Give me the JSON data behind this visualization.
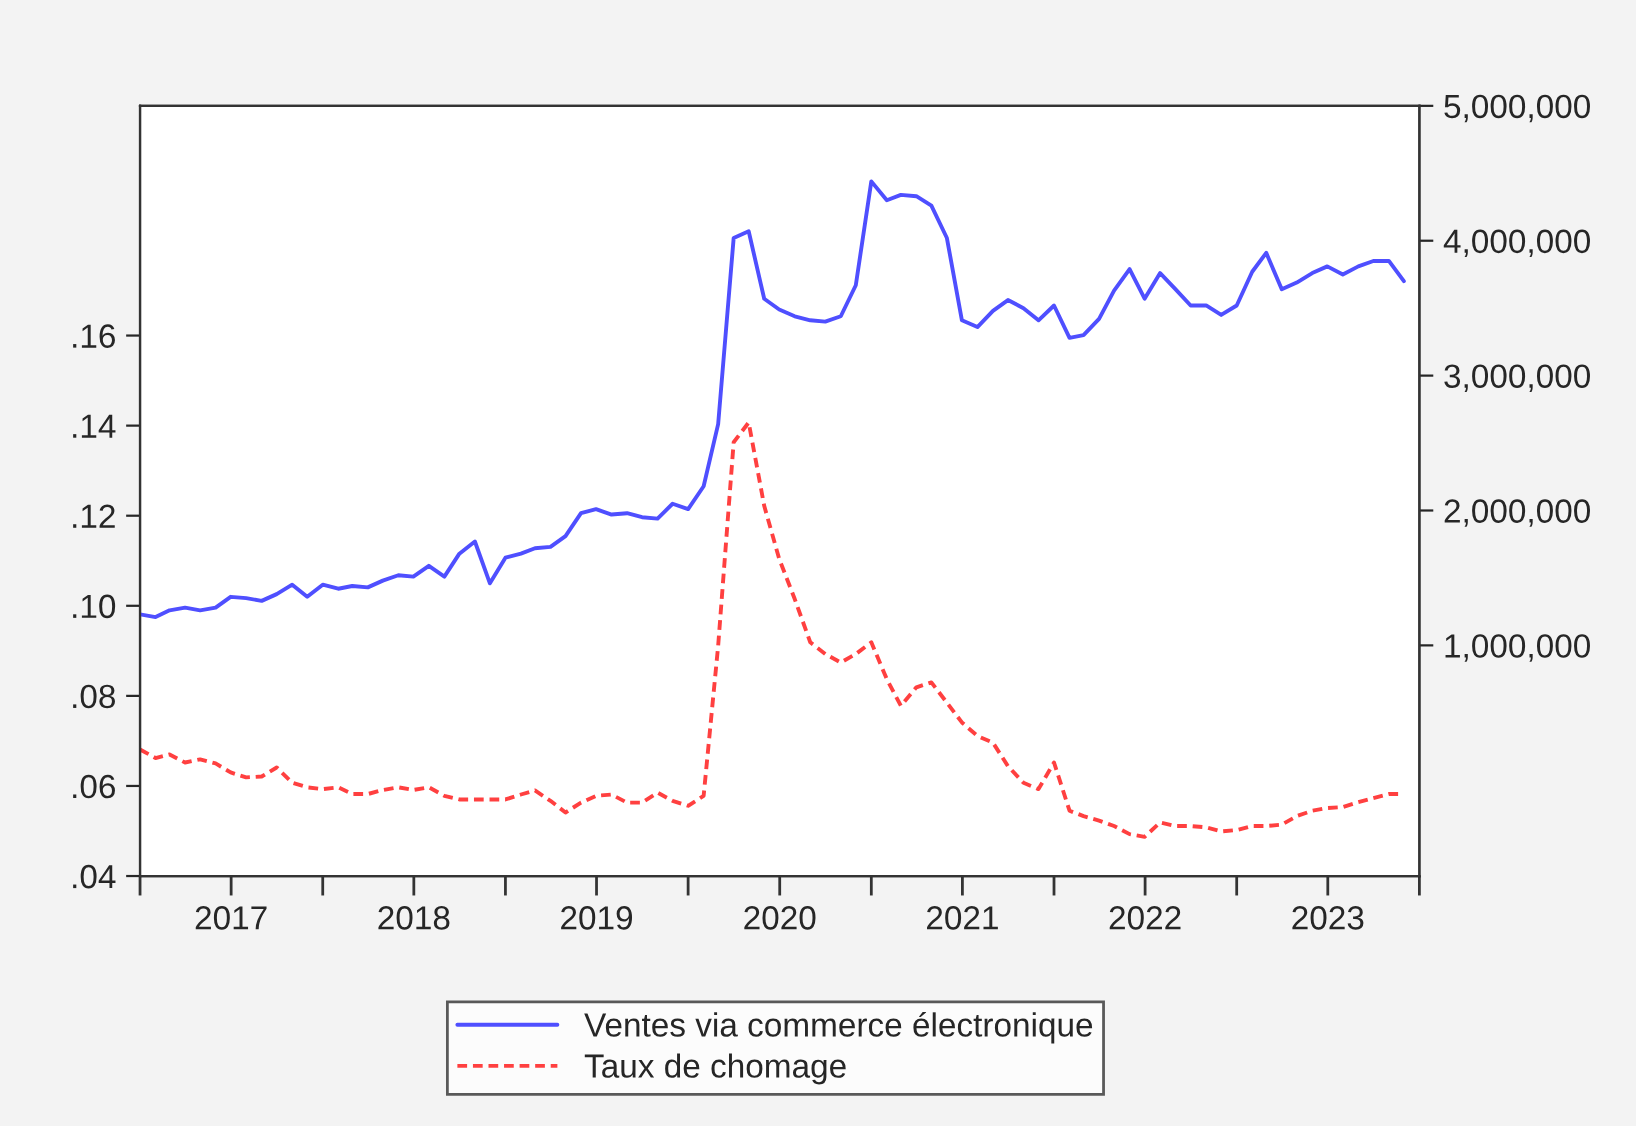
{
  "chart_data": {
    "type": "line",
    "x": [
      "2017-01",
      "2017-02",
      "2017-03",
      "2017-04",
      "2017-05",
      "2017-06",
      "2017-07",
      "2017-08",
      "2017-09",
      "2017-10",
      "2017-11",
      "2017-12",
      "2018-01",
      "2018-02",
      "2018-03",
      "2018-04",
      "2018-05",
      "2018-06",
      "2018-07",
      "2018-08",
      "2018-09",
      "2018-10",
      "2018-11",
      "2018-12",
      "2019-01",
      "2019-02",
      "2019-03",
      "2019-04",
      "2019-05",
      "2019-06",
      "2019-07",
      "2019-08",
      "2019-09",
      "2019-10",
      "2019-11",
      "2019-12",
      "2020-01",
      "2020-02",
      "2020-03",
      "2020-04",
      "2020-05",
      "2020-06",
      "2020-07",
      "2020-08",
      "2020-09",
      "2020-10",
      "2020-11",
      "2020-12",
      "2021-01",
      "2021-02",
      "2021-03",
      "2021-04",
      "2021-05",
      "2021-06",
      "2021-07",
      "2021-08",
      "2021-09",
      "2021-10",
      "2021-11",
      "2021-12",
      "2022-01",
      "2022-02",
      "2022-03",
      "2022-04",
      "2022-05",
      "2022-06",
      "2022-07",
      "2022-08",
      "2022-09",
      "2022-10",
      "2022-11",
      "2022-12",
      "2023-01",
      "2023-02",
      "2023-03",
      "2023-04",
      "2023-05",
      "2023-06",
      "2023-07",
      "2023-08",
      "2023-09",
      "2023-10",
      "2023-11",
      "2023-12"
    ],
    "series": [
      {
        "name": "Ventes via commerce électronique",
        "color": "#4f4fff",
        "axis": "y2",
        "line_style": "solid",
        "values": [
          1230000,
          1210000,
          1260000,
          1280000,
          1260000,
          1280000,
          1360000,
          1350000,
          1330000,
          1380000,
          1450000,
          1360000,
          1450000,
          1420000,
          1440000,
          1430000,
          1480000,
          1520000,
          1510000,
          1590000,
          1510000,
          1680000,
          1770000,
          1460000,
          1650000,
          1680000,
          1720000,
          1730000,
          1810000,
          1980000,
          2010000,
          1970000,
          1980000,
          1950000,
          1940000,
          2050000,
          2010000,
          2180000,
          2640000,
          4020000,
          4070000,
          3570000,
          3490000,
          3440000,
          3410000,
          3400000,
          3440000,
          3670000,
          4440000,
          4300000,
          4340000,
          4330000,
          4260000,
          4020000,
          3410000,
          3360000,
          3480000,
          3560000,
          3500000,
          3410000,
          3520000,
          3280000,
          3300000,
          3420000,
          3630000,
          3790000,
          3570000,
          3760000,
          3640000,
          3520000,
          3520000,
          3450000,
          3520000,
          3770000,
          3910000,
          3640000,
          3690000,
          3760000,
          3810000,
          3750000,
          3810000,
          3850000,
          3850000,
          3700000
        ]
      },
      {
        "name": "Taux de chomage",
        "color": "#ff4040",
        "axis": "y",
        "line_style": "dashed",
        "values": [
          0.0681,
          0.0662,
          0.067,
          0.0652,
          0.0659,
          0.065,
          0.063,
          0.0619,
          0.0621,
          0.0641,
          0.0607,
          0.0597,
          0.0593,
          0.0597,
          0.0582,
          0.0582,
          0.0591,
          0.0597,
          0.0591,
          0.0597,
          0.0578,
          0.057,
          0.057,
          0.057,
          0.057,
          0.0581,
          0.059,
          0.0567,
          0.0541,
          0.0563,
          0.0578,
          0.0581,
          0.0563,
          0.0563,
          0.0585,
          0.0567,
          0.0556,
          0.0578,
          0.0911,
          0.1363,
          0.1407,
          0.1222,
          0.1104,
          0.1015,
          0.0919,
          0.0893,
          0.0874,
          0.0893,
          0.0919,
          0.0837,
          0.0778,
          0.0819,
          0.083,
          0.0785,
          0.0741,
          0.0711,
          0.0696,
          0.0644,
          0.0607,
          0.0593,
          0.0652,
          0.0545,
          0.0533,
          0.0523,
          0.0511,
          0.0493,
          0.0487,
          0.0519,
          0.0511,
          0.0511,
          0.0508,
          0.0499,
          0.0502,
          0.0511,
          0.0511,
          0.0514,
          0.0533,
          0.0545,
          0.0551,
          0.0553,
          0.0564,
          0.0573,
          0.0582,
          0.0582
        ]
      }
    ],
    "xlim": [
      "2017-01-01",
      "2024-01-01"
    ],
    "xticks": [
      {
        "value": "2017-01-01",
        "label": null
      },
      {
        "value": "2017-07-02",
        "label": "2017"
      },
      {
        "value": "2018-01-01",
        "label": null
      },
      {
        "value": "2018-07-02",
        "label": "2018"
      },
      {
        "value": "2019-01-01",
        "label": null
      },
      {
        "value": "2019-07-02",
        "label": "2019"
      },
      {
        "value": "2020-01-01",
        "label": null
      },
      {
        "value": "2020-07-02",
        "label": "2020"
      },
      {
        "value": "2021-01-01",
        "label": null
      },
      {
        "value": "2021-07-02",
        "label": "2021"
      },
      {
        "value": "2022-01-01",
        "label": null
      },
      {
        "value": "2022-07-02",
        "label": "2022"
      },
      {
        "value": "2023-01-01",
        "label": null
      },
      {
        "value": "2023-07-02",
        "label": "2023"
      },
      {
        "value": "2024-01-01",
        "label": null
      }
    ],
    "ylim": [
      0.04,
      0.211
    ],
    "yticks": [
      {
        "value": 0.04,
        "label": ".04"
      },
      {
        "value": 0.06,
        "label": ".06"
      },
      {
        "value": 0.08,
        "label": ".08"
      },
      {
        "value": 0.1,
        "label": ".10"
      },
      {
        "value": 0.12,
        "label": ".12"
      },
      {
        "value": 0.14,
        "label": ".14"
      },
      {
        "value": 0.16,
        "label": ".16"
      }
    ],
    "y2lim": [
      -710000,
      5000000
    ],
    "y2ticks": [
      {
        "value": 1000000,
        "label": "1,000,000"
      },
      {
        "value": 2000000,
        "label": "2,000,000"
      },
      {
        "value": 3000000,
        "label": "3,000,000"
      },
      {
        "value": 4000000,
        "label": "4,000,000"
      },
      {
        "value": 5000000,
        "label": "5,000,000"
      }
    ],
    "legend": "bottom"
  }
}
